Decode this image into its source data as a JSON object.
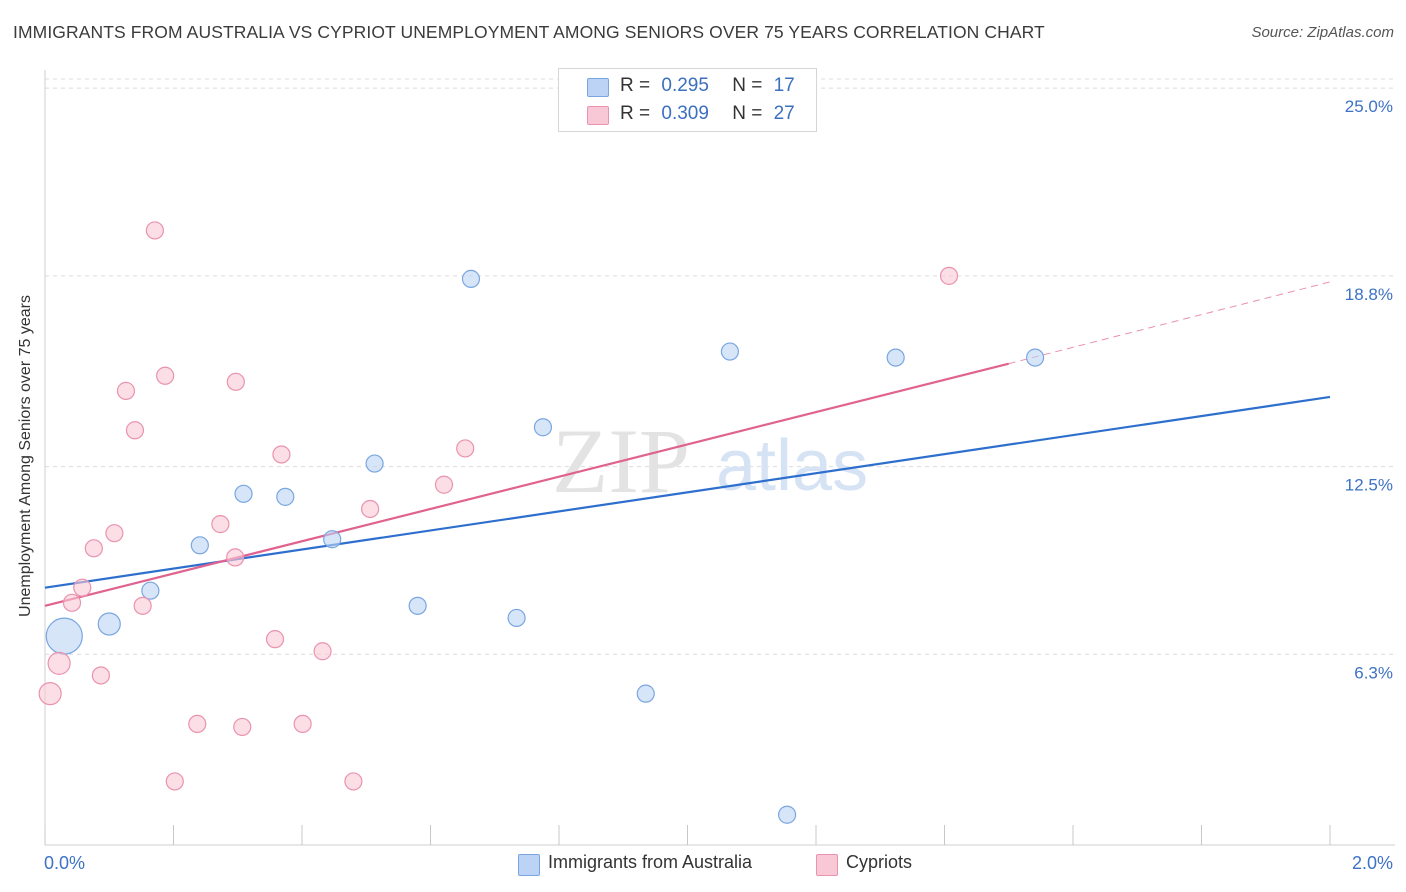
{
  "title": "IMMIGRANTS FROM AUSTRALIA VS CYPRIOT UNEMPLOYMENT AMONG SENIORS OVER 75 YEARS CORRELATION CHART",
  "source": "Source: ZipAtlas.com",
  "watermark": {
    "zip": "ZIP",
    "atlas": "atlas"
  },
  "stats": [
    {
      "r_label": "R =",
      "r": "0.295",
      "n_label": "N =",
      "n": "17"
    },
    {
      "r_label": "R =",
      "r": "0.309",
      "n_label": "N =",
      "n": "27"
    }
  ],
  "legend": [
    {
      "label": "Immigrants from Australia"
    },
    {
      "label": "Cypriots"
    }
  ],
  "colors": {
    "blue_fill": "#bcd3f5",
    "blue_stroke": "#7aa6e0",
    "blue_line": "#2e6fce",
    "pink_fill": "#f9c8d6",
    "pink_stroke": "#ea93ae",
    "pink_line": "#e0628e",
    "tick_label": "#3d72c4"
  },
  "chart_data": {
    "type": "scatter",
    "title": "IMMIGRANTS FROM AUSTRALIA VS CYPRIOT UNEMPLOYMENT AMONG SENIORS OVER 75 YEARS CORRELATION CHART",
    "xlabel": "",
    "ylabel": "Unemployment Among Seniors over 75 years",
    "xlim": [
      0,
      2.0
    ],
    "ylim": [
      0,
      25.6
    ],
    "x_tick_labels": [
      {
        "value": 0,
        "label": "0.0%"
      },
      {
        "value": 2.0,
        "label": "2.0%"
      }
    ],
    "y_ticks": [
      {
        "value": 6.3,
        "label": "6.3%"
      },
      {
        "value": 12.5,
        "label": "12.5%"
      },
      {
        "value": 18.8,
        "label": "18.8%"
      },
      {
        "value": 25.0,
        "label": "25.0%"
      }
    ],
    "series": [
      {
        "name": "Immigrants from Australia",
        "color": "blue",
        "points": [
          {
            "x": 0.03,
            "y": 6.9,
            "size": 3
          },
          {
            "x": 0.1,
            "y": 7.3,
            "size": 2
          },
          {
            "x": 0.164,
            "y": 8.4,
            "size": 1
          },
          {
            "x": 0.241,
            "y": 9.9,
            "size": 1
          },
          {
            "x": 0.309,
            "y": 11.6,
            "size": 1
          },
          {
            "x": 0.374,
            "y": 11.5,
            "size": 1
          },
          {
            "x": 0.447,
            "y": 10.1,
            "size": 1
          },
          {
            "x": 0.513,
            "y": 12.6,
            "size": 1
          },
          {
            "x": 0.58,
            "y": 7.9,
            "size": 1
          },
          {
            "x": 0.663,
            "y": 18.7,
            "size": 1
          },
          {
            "x": 0.734,
            "y": 7.5,
            "size": 1
          },
          {
            "x": 0.775,
            "y": 13.8,
            "size": 1
          },
          {
            "x": 0.935,
            "y": 5.0,
            "size": 1
          },
          {
            "x": 1.066,
            "y": 16.3,
            "size": 1
          },
          {
            "x": 1.155,
            "y": 1.0,
            "size": 1
          },
          {
            "x": 1.324,
            "y": 16.1,
            "size": 1
          },
          {
            "x": 1.541,
            "y": 16.1,
            "size": 1
          }
        ],
        "trend": {
          "x0": 0.0,
          "y0": 8.5,
          "x1": 2.0,
          "y1": 14.8
        }
      },
      {
        "name": "Cypriots",
        "color": "pink",
        "points": [
          {
            "x": 0.008,
            "y": 5.0,
            "size": 2
          },
          {
            "x": 0.022,
            "y": 6.0,
            "size": 2
          },
          {
            "x": 0.042,
            "y": 8.0,
            "size": 1
          },
          {
            "x": 0.058,
            "y": 8.5,
            "size": 1
          },
          {
            "x": 0.076,
            "y": 9.8,
            "size": 1
          },
          {
            "x": 0.087,
            "y": 5.6,
            "size": 1
          },
          {
            "x": 0.108,
            "y": 10.3,
            "size": 1
          },
          {
            "x": 0.126,
            "y": 15.0,
            "size": 1
          },
          {
            "x": 0.14,
            "y": 13.7,
            "size": 1
          },
          {
            "x": 0.152,
            "y": 7.9,
            "size": 1
          },
          {
            "x": 0.171,
            "y": 20.3,
            "size": 1
          },
          {
            "x": 0.187,
            "y": 15.5,
            "size": 1
          },
          {
            "x": 0.202,
            "y": 2.1,
            "size": 1
          },
          {
            "x": 0.237,
            "y": 4.0,
            "size": 1
          },
          {
            "x": 0.273,
            "y": 10.6,
            "size": 1
          },
          {
            "x": 0.296,
            "y": 9.5,
            "size": 1
          },
          {
            "x": 0.297,
            "y": 15.3,
            "size": 1
          },
          {
            "x": 0.307,
            "y": 3.9,
            "size": 1
          },
          {
            "x": 0.358,
            "y": 6.8,
            "size": 1
          },
          {
            "x": 0.368,
            "y": 12.9,
            "size": 1
          },
          {
            "x": 0.401,
            "y": 4.0,
            "size": 1
          },
          {
            "x": 0.432,
            "y": 6.4,
            "size": 1
          },
          {
            "x": 0.48,
            "y": 2.1,
            "size": 1
          },
          {
            "x": 0.506,
            "y": 11.1,
            "size": 1
          },
          {
            "x": 0.621,
            "y": 11.9,
            "size": 1
          },
          {
            "x": 0.654,
            "y": 13.1,
            "size": 1
          },
          {
            "x": 1.407,
            "y": 18.8,
            "size": 1
          }
        ],
        "trend": {
          "x0": 0.0,
          "y0": 7.9,
          "x1": 1.5,
          "y1": 15.9,
          "dash_x1": 2.0,
          "dash_y1": 18.6
        }
      }
    ]
  }
}
